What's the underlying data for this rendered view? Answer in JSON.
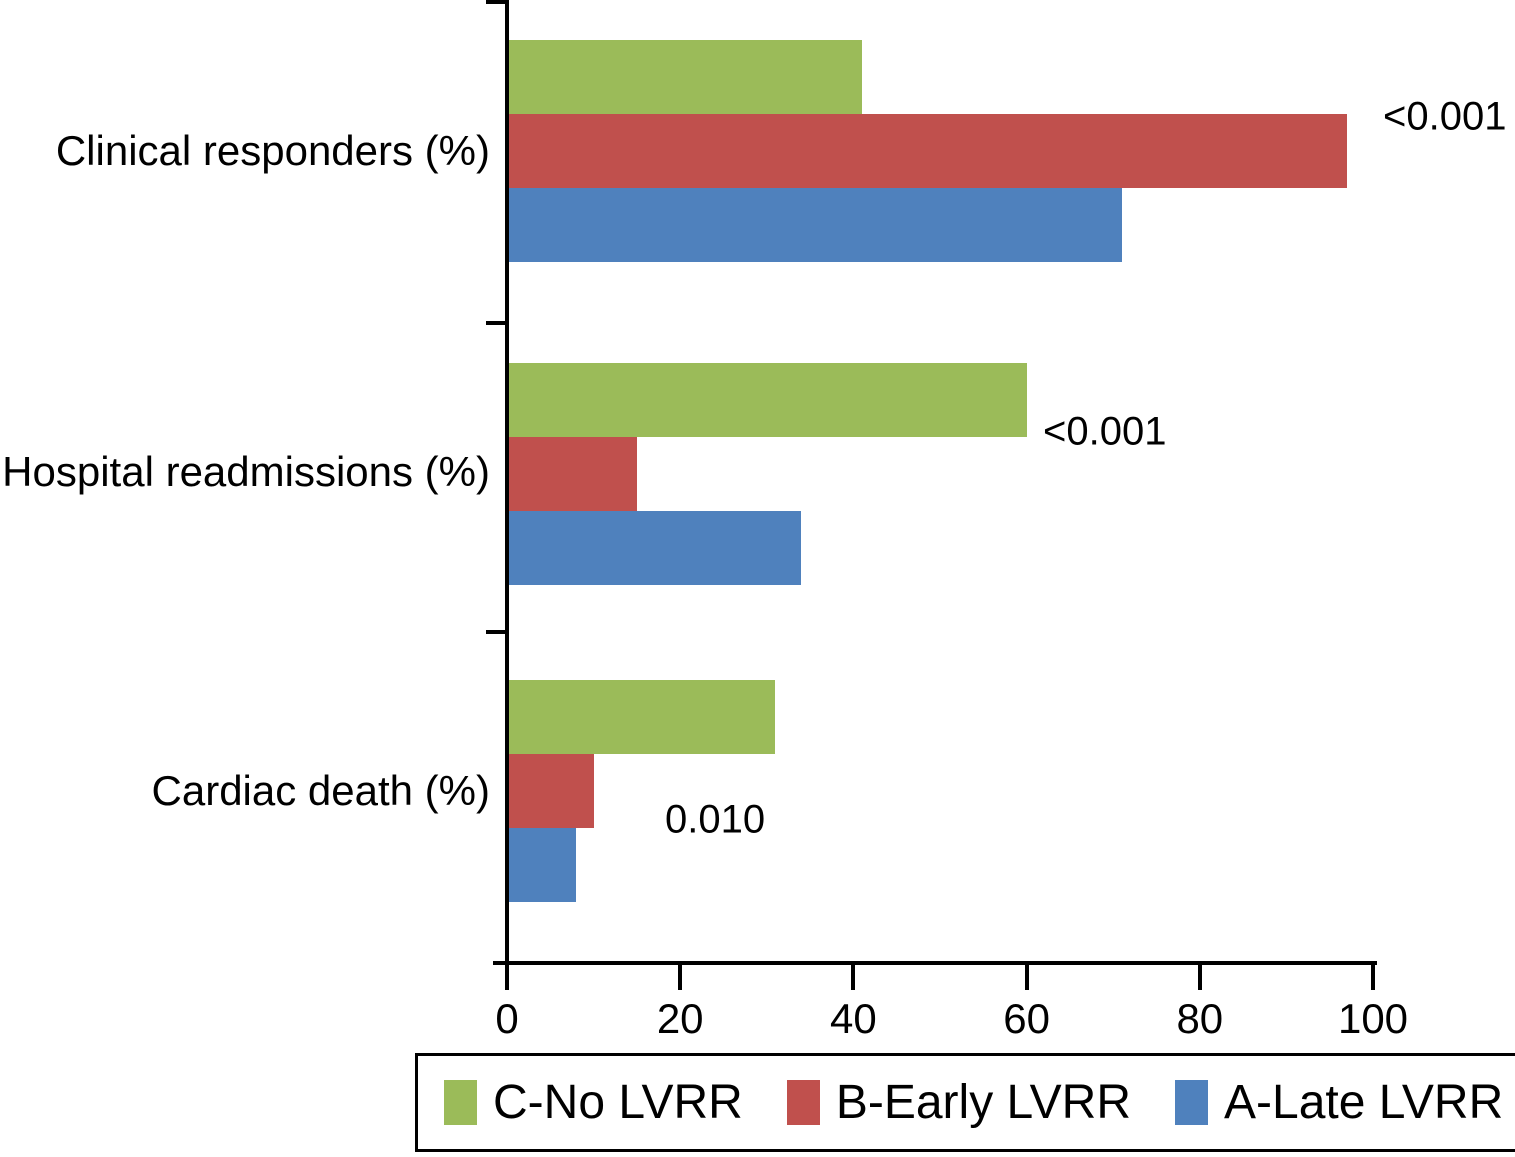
{
  "chart_data": {
    "type": "bar",
    "orientation": "horizontal",
    "title": "",
    "categories": [
      "Clinical responders (%)",
      "Hospital readmissions (%)",
      "Cardiac death (%)"
    ],
    "series": [
      {
        "name": "C-No LVRR",
        "color": "#9BBB59",
        "values": [
          41,
          60,
          31
        ]
      },
      {
        "name": "B-Early LVRR",
        "color": "#C0504D",
        "values": [
          97,
          15,
          10
        ]
      },
      {
        "name": "A-Late LVRR",
        "color": "#4F81BD",
        "values": [
          71,
          34,
          8
        ]
      }
    ],
    "p_value_annotations": [
      "<0.001",
      "<0.001",
      "0.010"
    ],
    "x_axis": {
      "ticks": [
        "0",
        "20",
        "40",
        "60",
        "80",
        "100"
      ],
      "tick_values": [
        0,
        20,
        40,
        60,
        80,
        100
      ],
      "range": [
        0,
        100
      ]
    },
    "legend": {
      "position": "bottom",
      "bordered": true
    },
    "colors": {
      "axis": "#000000",
      "text": "#000000",
      "background": "#ffffff"
    }
  }
}
